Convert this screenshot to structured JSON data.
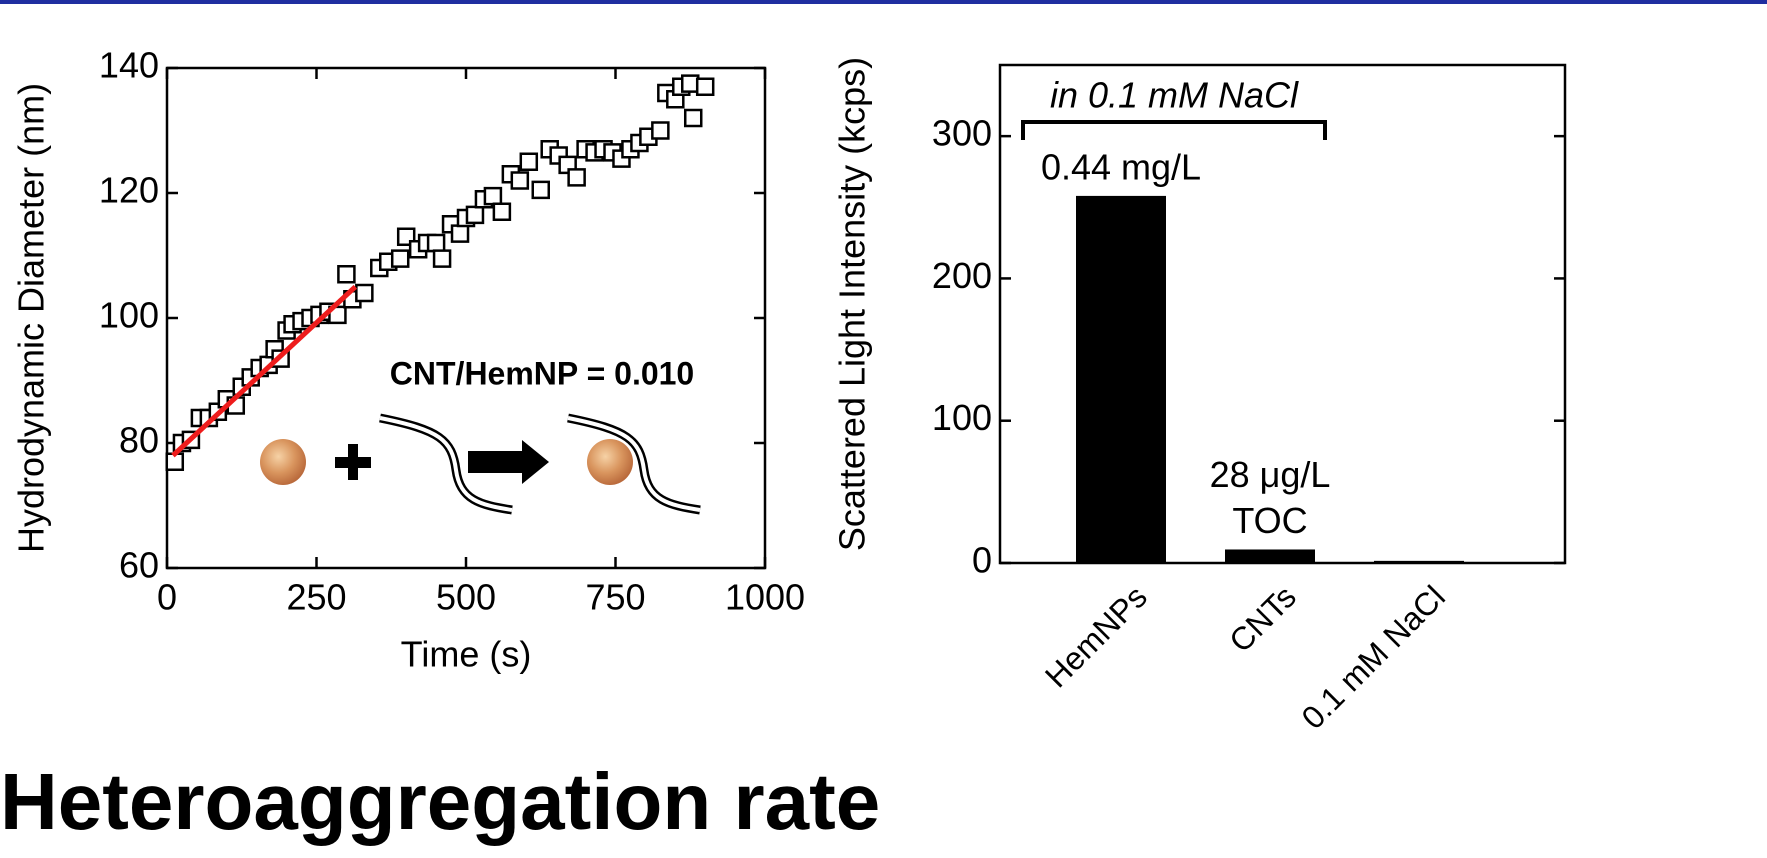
{
  "heading": "Heteroaggregation rate",
  "chart_data": [
    {
      "type": "scatter",
      "xlabel": "Time (s)",
      "ylabel": "Hydrodynamic Diameter (nm)",
      "xlim": [
        0,
        1000
      ],
      "ylim": [
        60,
        140
      ],
      "xticks": [
        0,
        250,
        500,
        750,
        1000
      ],
      "yticks": [
        60,
        80,
        100,
        120,
        140
      ],
      "annotation": "CNT/HemNP = 0.010",
      "series": [
        {
          "color": "#000000",
          "x": [
            13,
            25,
            40,
            55,
            70,
            85,
            100,
            115,
            125,
            140,
            155,
            170,
            180,
            190,
            200,
            210,
            225,
            240,
            255,
            270,
            285,
            300,
            310,
            330,
            355,
            370,
            390,
            400,
            420,
            435,
            450,
            460,
            475,
            490,
            500,
            515,
            530,
            545,
            560,
            575,
            590,
            605,
            625,
            640,
            655,
            670,
            685,
            700,
            715,
            730,
            745,
            760,
            775,
            790,
            805,
            825,
            835,
            850,
            860,
            875,
            880,
            900
          ],
          "values": [
            77,
            80,
            80.5,
            84,
            84,
            85,
            87,
            86,
            89,
            90.5,
            92,
            92.5,
            95,
            93.5,
            98,
            99,
            99.5,
            100,
            100.5,
            101,
            100.5,
            107,
            103,
            104,
            108,
            109,
            109.5,
            113,
            111,
            112,
            112,
            109.5,
            115,
            113.5,
            116,
            116.5,
            119,
            119.5,
            117,
            123,
            122,
            125,
            120.5,
            127,
            126,
            124.5,
            122.5,
            127,
            126.5,
            127,
            126.5,
            125.5,
            127,
            128,
            129,
            130,
            136,
            135,
            137,
            137.5,
            132,
            137
          ]
        }
      ],
      "fit_line": {
        "color": "#ee1c1c",
        "x": [
          10,
          315
        ],
        "values": [
          78,
          105
        ]
      }
    },
    {
      "type": "bar",
      "ylabel": "Scattered Light Intensity (kcps)",
      "ylim": [
        0,
        350
      ],
      "yticks": [
        0,
        100,
        200,
        300
      ],
      "categories": [
        "HemNPs",
        "CNTs",
        "0.1 mM NaCl"
      ],
      "values": [
        258,
        9.5,
        1.5
      ],
      "color": "#000000",
      "bar_notes": [
        [
          "0.44 mg/L"
        ],
        [
          "28 μg/L",
          "TOC"
        ],
        null
      ],
      "bracket_label": "in 0.1 mM NaCl"
    }
  ]
}
